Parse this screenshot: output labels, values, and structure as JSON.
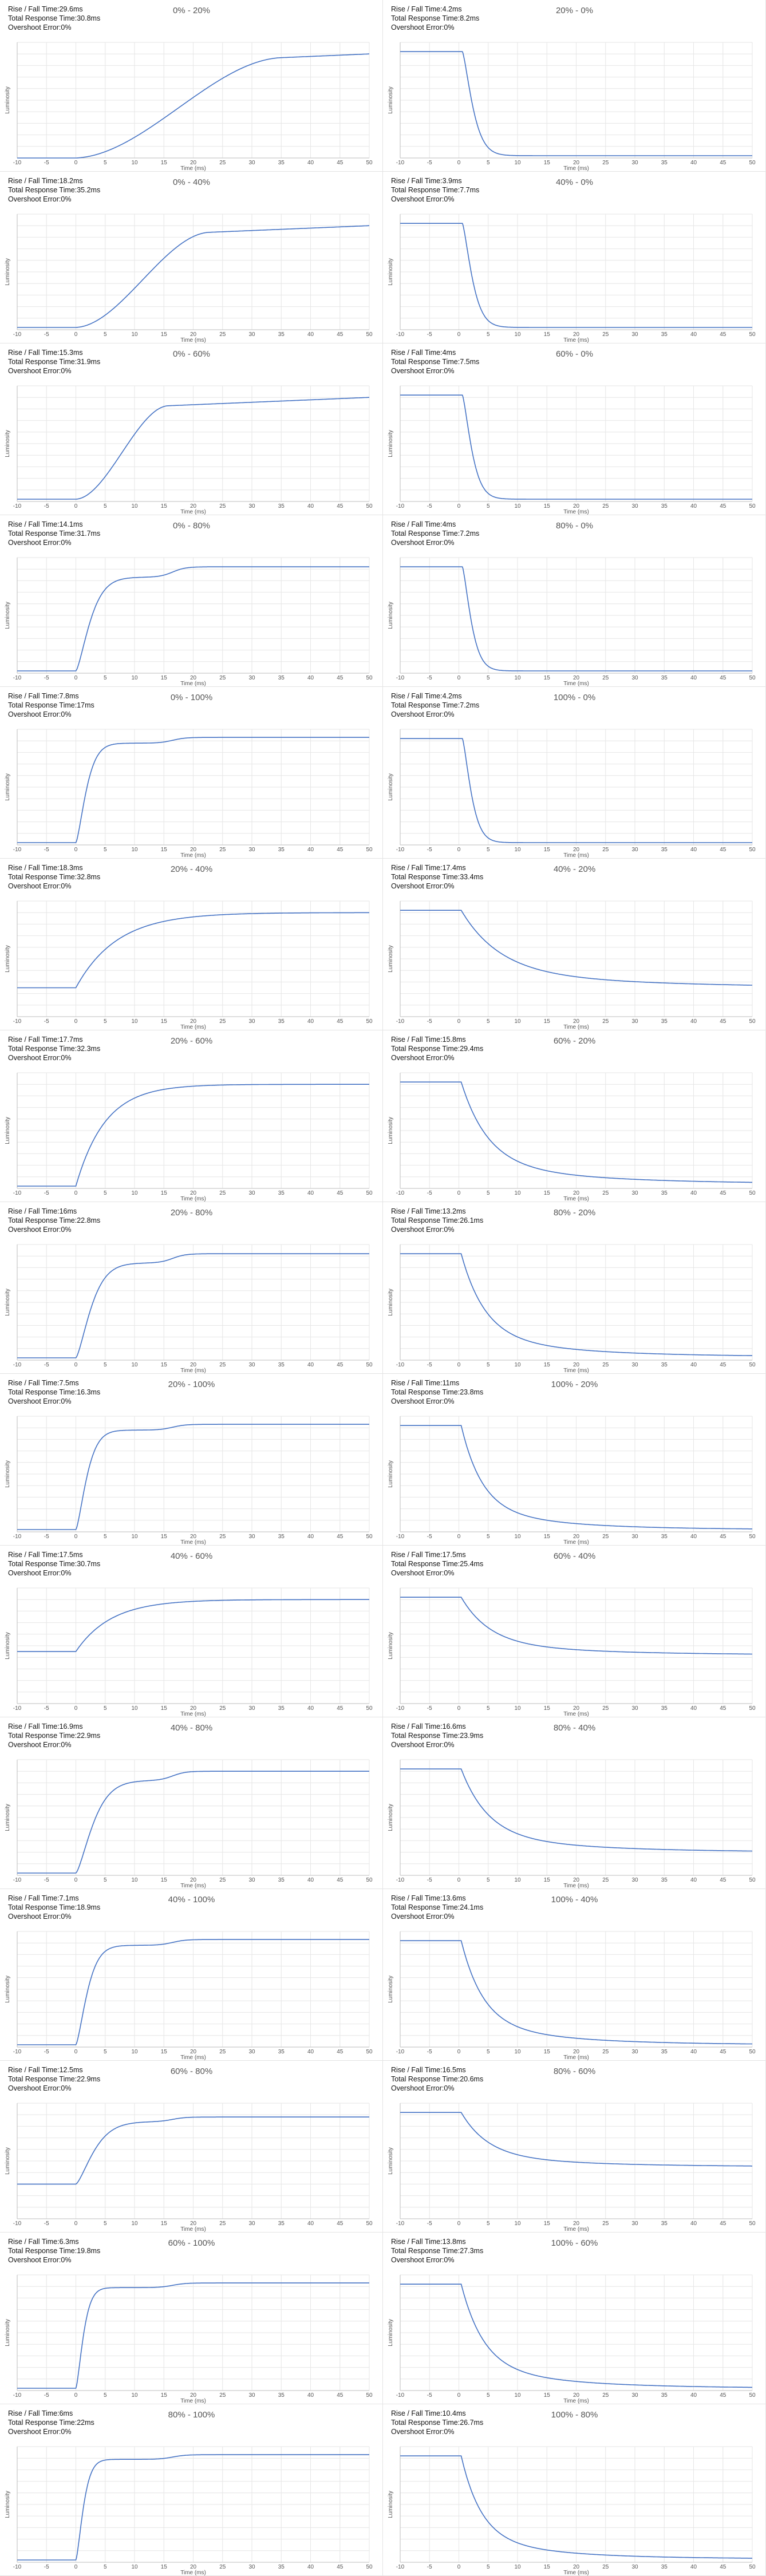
{
  "labels": {
    "rise": "Rise / Fall Time:",
    "total": "Total Response Time:",
    "overshoot": "Overshoot Error:",
    "xlabel": "Time (ms)",
    "ylabel": "Luminosity"
  },
  "chart_data": {
    "type": "line",
    "xlim": [
      -10,
      50
    ],
    "xticks": [
      -10,
      -5,
      0,
      5,
      10,
      15,
      20,
      25,
      30,
      35,
      40,
      45,
      50
    ],
    "grid": true,
    "line_color": "#4472c4",
    "panels": [
      {
        "title": "0% - 20%",
        "rise": "29.6ms",
        "total": "30.8ms",
        "overshoot": "0%",
        "kind": "rise",
        "start": 0.0,
        "end": 0.9,
        "curve": "slow",
        "tau": 10,
        "knee_y": 0.72,
        "ylim": [
          0,
          1
        ]
      },
      {
        "title": "20% - 0%",
        "rise": "4.2ms",
        "total": "8.2ms",
        "overshoot": "0%",
        "kind": "fall",
        "start": 0.92,
        "end": 0.02,
        "curve": "fast",
        "tau": 2.2,
        "ylim": [
          0,
          1
        ]
      },
      {
        "title": "0% - 40%",
        "rise": "18.2ms",
        "total": "35.2ms",
        "overshoot": "0%",
        "kind": "rise",
        "start": 0.02,
        "end": 0.9,
        "curve": "slow",
        "tau": 6.5,
        "ylim": [
          0,
          1
        ]
      },
      {
        "title": "40% - 0%",
        "rise": "3.9ms",
        "total": "7.7ms",
        "overshoot": "0%",
        "kind": "fall",
        "start": 0.92,
        "end": 0.02,
        "curve": "fast",
        "tau": 2.1,
        "ylim": [
          0,
          1
        ]
      },
      {
        "title": "0% - 60%",
        "rise": "15.3ms",
        "total": "31.9ms",
        "overshoot": "0%",
        "kind": "rise",
        "start": 0.02,
        "end": 0.9,
        "curve": "slow",
        "tau": 4.5,
        "ylim": [
          0,
          1
        ]
      },
      {
        "title": "60% - 0%",
        "rise": "4ms",
        "total": "7.5ms",
        "overshoot": "0%",
        "kind": "fall",
        "start": 0.92,
        "end": 0.02,
        "curve": "fast",
        "tau": 2.0,
        "ylim": [
          0,
          1
        ]
      },
      {
        "title": "0% - 80%",
        "rise": "14.1ms",
        "total": "31.7ms",
        "overshoot": "0%",
        "kind": "rise",
        "start": 0.02,
        "end": 0.92,
        "curve": "step",
        "tau": 3.0,
        "knee_y": 0.83,
        "ylim": [
          0,
          1
        ]
      },
      {
        "title": "80% - 0%",
        "rise": "4ms",
        "total": "7.2ms",
        "overshoot": "0%",
        "kind": "fall",
        "start": 0.92,
        "end": 0.02,
        "curve": "fast",
        "tau": 1.9,
        "ylim": [
          0,
          1
        ]
      },
      {
        "title": "0% - 100%",
        "rise": "7.8ms",
        "total": "17ms",
        "overshoot": "0%",
        "kind": "rise",
        "start": 0.02,
        "end": 0.93,
        "curve": "step",
        "tau": 2.2,
        "knee_y": 0.88,
        "ylim": [
          0,
          1
        ]
      },
      {
        "title": "100% - 0%",
        "rise": "4.2ms",
        "total": "7.2ms",
        "overshoot": "0%",
        "kind": "fall",
        "start": 0.92,
        "end": 0.02,
        "curve": "fast",
        "tau": 1.9,
        "ylim": [
          0,
          1
        ]
      },
      {
        "title": "20% - 40%",
        "rise": "18.3ms",
        "total": "32.8ms",
        "overshoot": "0%",
        "kind": "rise",
        "start": 0.25,
        "end": 0.9,
        "curve": "exp",
        "tau": 7.0,
        "ylim": [
          0,
          1
        ]
      },
      {
        "title": "40% - 20%",
        "rise": "17.4ms",
        "total": "33.4ms",
        "overshoot": "0%",
        "kind": "fall",
        "start": 0.92,
        "end": 0.25,
        "curve": "slowfall",
        "tau": 6.5,
        "ylim": [
          0,
          1
        ]
      },
      {
        "title": "20% - 60%",
        "rise": "17.7ms",
        "total": "32.3ms",
        "overshoot": "0%",
        "kind": "rise",
        "start": 0.02,
        "end": 0.9,
        "curve": "exp",
        "tau": 5.0,
        "ylim": [
          0,
          1
        ]
      },
      {
        "title": "60% - 20%",
        "rise": "15.8ms",
        "total": "29.4ms",
        "overshoot": "0%",
        "kind": "fall",
        "start": 0.92,
        "end": 0.04,
        "curve": "slowfall",
        "tau": 4.5,
        "ylim": [
          0,
          1
        ]
      },
      {
        "title": "20% - 80%",
        "rise": "16ms",
        "total": "22.8ms",
        "overshoot": "0%",
        "kind": "rise",
        "start": 0.02,
        "end": 0.92,
        "curve": "step",
        "tau": 3.2,
        "knee_y": 0.84,
        "ylim": [
          0,
          1
        ]
      },
      {
        "title": "80% - 20%",
        "rise": "13.2ms",
        "total": "26.1ms",
        "overshoot": "0%",
        "kind": "fall",
        "start": 0.92,
        "end": 0.03,
        "curve": "slowfall",
        "tau": 4.0,
        "ylim": [
          0,
          1
        ]
      },
      {
        "title": "20% - 100%",
        "rise": "7.5ms",
        "total": "16.3ms",
        "overshoot": "0%",
        "kind": "rise",
        "start": 0.02,
        "end": 0.93,
        "curve": "step",
        "tau": 2.3,
        "knee_y": 0.88,
        "ylim": [
          0,
          1
        ]
      },
      {
        "title": "100% - 20%",
        "rise": "11ms",
        "total": "23.8ms",
        "overshoot": "0%",
        "kind": "fall",
        "start": 0.92,
        "end": 0.02,
        "curve": "slowfall",
        "tau": 3.5,
        "ylim": [
          0,
          1
        ]
      },
      {
        "title": "40% - 60%",
        "rise": "17.5ms",
        "total": "30.7ms",
        "overshoot": "0%",
        "kind": "rise",
        "start": 0.45,
        "end": 0.9,
        "curve": "exp",
        "tau": 6.0,
        "ylim": [
          0,
          1
        ]
      },
      {
        "title": "60% - 40%",
        "rise": "17.5ms",
        "total": "25.4ms",
        "overshoot": "0%",
        "kind": "fall",
        "start": 0.92,
        "end": 0.42,
        "curve": "slowfall",
        "tau": 4.8,
        "ylim": [
          0,
          1
        ]
      },
      {
        "title": "40% - 80%",
        "rise": "16.9ms",
        "total": "22.9ms",
        "overshoot": "0%",
        "kind": "rise",
        "start": 0.02,
        "end": 0.9,
        "curve": "step",
        "tau": 3.6,
        "knee_y": 0.82,
        "ylim": [
          0,
          1
        ]
      },
      {
        "title": "80% - 40%",
        "rise": "16.6ms",
        "total": "23.9ms",
        "overshoot": "0%",
        "kind": "fall",
        "start": 0.92,
        "end": 0.2,
        "curve": "slowfall",
        "tau": 4.5,
        "ylim": [
          0,
          1
        ]
      },
      {
        "title": "40% - 100%",
        "rise": "7.1ms",
        "total": "18.9ms",
        "overshoot": "0%",
        "kind": "rise",
        "start": 0.02,
        "end": 0.93,
        "curve": "step",
        "tau": 2.4,
        "knee_y": 0.88,
        "ylim": [
          0,
          1
        ]
      },
      {
        "title": "100% - 40%",
        "rise": "13.6ms",
        "total": "24.1ms",
        "overshoot": "0%",
        "kind": "fall",
        "start": 0.92,
        "end": 0.02,
        "curve": "slowfall",
        "tau": 3.7,
        "ylim": [
          0,
          1
        ]
      },
      {
        "title": "60% - 80%",
        "rise": "12.5ms",
        "total": "22.9ms",
        "overshoot": "0%",
        "kind": "rise",
        "start": 0.3,
        "end": 0.88,
        "curve": "step",
        "tau": 3.8,
        "knee_y": 0.84,
        "ylim": [
          0,
          1
        ]
      },
      {
        "title": "80% - 60%",
        "rise": "16.5ms",
        "total": "20.6ms",
        "overshoot": "0%",
        "kind": "fall",
        "start": 0.92,
        "end": 0.45,
        "curve": "slowfall",
        "tau": 4.5,
        "ylim": [
          0,
          1
        ]
      },
      {
        "title": "60% - 100%",
        "rise": "6.3ms",
        "total": "19.8ms",
        "overshoot": "0%",
        "kind": "rise",
        "start": 0.02,
        "end": 0.93,
        "curve": "step",
        "tau": 1.6,
        "knee_y": 0.89,
        "ylim": [
          0,
          1
        ]
      },
      {
        "title": "100% - 60%",
        "rise": "13.8ms",
        "total": "27.3ms",
        "overshoot": "0%",
        "kind": "fall",
        "start": 0.92,
        "end": 0.02,
        "curve": "slowfall",
        "tau": 3.8,
        "ylim": [
          0,
          1
        ]
      },
      {
        "title": "80% - 100%",
        "rise": "6ms",
        "total": "22ms",
        "overshoot": "0%",
        "kind": "rise",
        "start": 0.02,
        "end": 0.93,
        "curve": "step",
        "tau": 1.6,
        "knee_y": 0.89,
        "ylim": [
          0,
          1
        ]
      },
      {
        "title": "100% - 80%",
        "rise": "10.4ms",
        "total": "26.7ms",
        "overshoot": "0%",
        "kind": "fall",
        "start": 0.92,
        "end": 0.03,
        "curve": "slowfall",
        "tau": 3.4,
        "ylim": [
          0,
          1
        ]
      }
    ]
  }
}
